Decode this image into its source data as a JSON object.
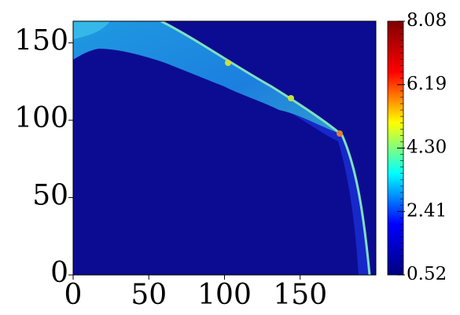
{
  "chart_data": {
    "type": "heatmap",
    "xlim": [
      0,
      200
    ],
    "ylim": [
      0,
      164
    ],
    "xticks": [
      0,
      50,
      100,
      150
    ],
    "yticks": [
      0,
      50,
      100,
      150
    ],
    "colorbar": {
      "lim": [
        0.52,
        8.08
      ],
      "ticks": [
        0.52,
        2.41,
        {
          "value": 4.3,
          "label": "4.30"
        },
        6.19,
        8.08
      ],
      "colormap": [
        "#00007f",
        "#0000ff",
        "#00ffff",
        "#ffff00",
        "#ff0000",
        "#7f0000"
      ]
    }
  }
}
